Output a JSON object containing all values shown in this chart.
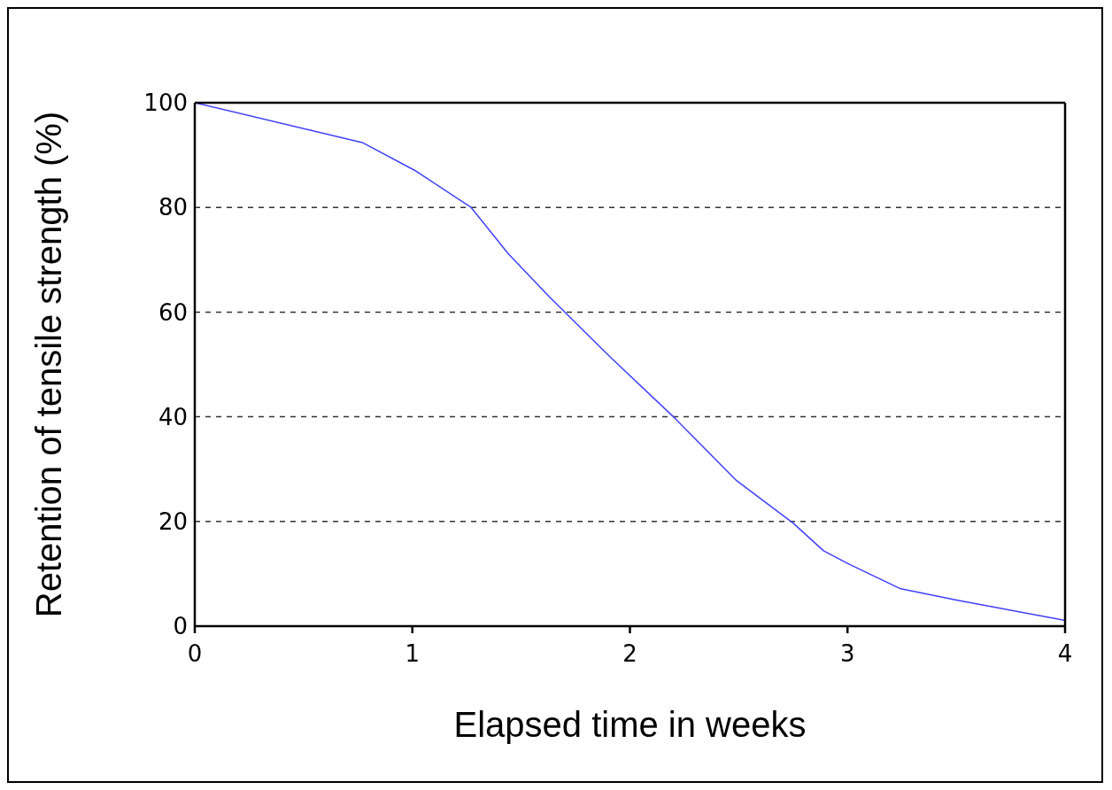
{
  "chart_data": {
    "type": "line",
    "xlabel": "Elapsed time in weeks",
    "ylabel": "Retention of tensile strength (%)",
    "x": [
      0,
      0.77,
      1.01,
      1.27,
      1.44,
      1.63,
      1.91,
      2.2,
      2.49,
      2.75,
      2.89,
      3.0,
      3.24,
      3.5,
      4.0
    ],
    "series": [
      {
        "color": "#4040ff",
        "values": [
          100,
          92.4,
          87.1,
          80,
          71.2,
          62.9,
          51.4,
          40,
          27.8,
          19.7,
          14.4,
          12,
          7.2,
          5,
          1.1
        ]
      }
    ],
    "xlim": [
      0,
      4
    ],
    "xticks": [
      0,
      1,
      2,
      3,
      4
    ],
    "ylim": [
      0,
      100
    ],
    "yticks": [
      0,
      20,
      40,
      60,
      80,
      100
    ],
    "grid": "y",
    "marker": "none",
    "line_style": "solid"
  }
}
